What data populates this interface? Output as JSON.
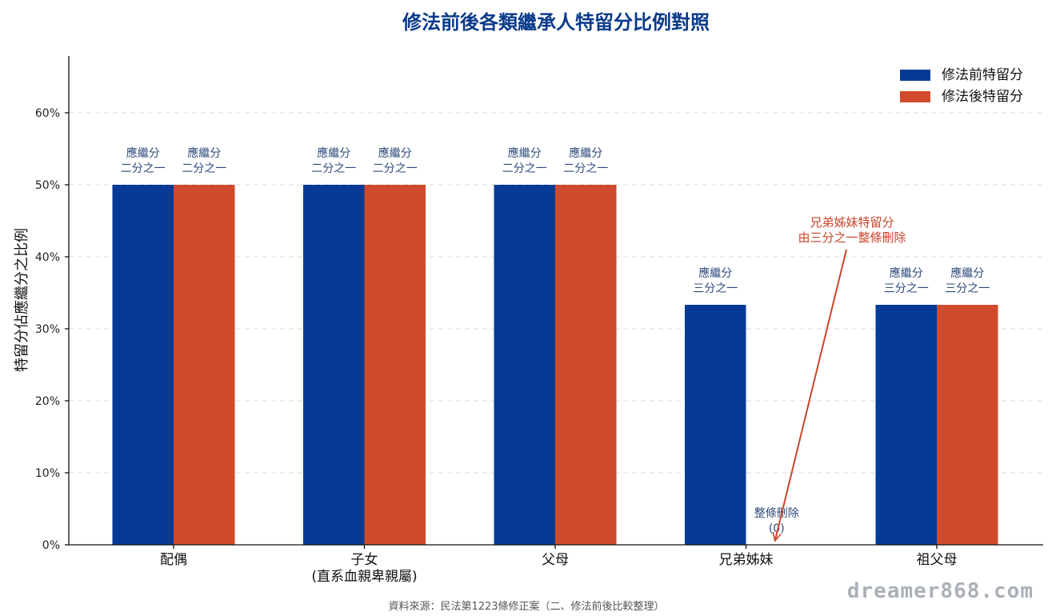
{
  "chart_data": {
    "type": "bar",
    "title": "修法前後各類繼承人特留分比例對照",
    "xlabel": "",
    "ylabel": "特留分佔應繼分之比例",
    "categories": [
      [
        "配偶"
      ],
      [
        "子女",
        "(直系血親卑親屬)"
      ],
      [
        "父母"
      ],
      [
        "兄弟姊妹"
      ],
      [
        "祖父母"
      ]
    ],
    "yticks": [
      "0%",
      "10%",
      "20%",
      "30%",
      "40%",
      "50%",
      "60%"
    ],
    "ylim": [
      0,
      0.68
    ],
    "grid": true,
    "legend_position": "top-right",
    "series": [
      {
        "name": "修法前特留分",
        "color": "#043a94",
        "values": [
          0.5,
          0.5,
          0.5,
          0.3333,
          0.3333
        ],
        "labels": [
          [
            "應繼分",
            "二分之一"
          ],
          [
            "應繼分",
            "二分之一"
          ],
          [
            "應繼分",
            "二分之一"
          ],
          [
            "應繼分",
            "三分之一"
          ],
          [
            "應繼分",
            "三分之一"
          ]
        ]
      },
      {
        "name": "修法後特留分",
        "color": "#d04a2c",
        "values": [
          0.5,
          0.5,
          0.5,
          0,
          0.3333
        ],
        "labels": [
          [
            "應繼分",
            "二分之一"
          ],
          [
            "應繼分",
            "二分之一"
          ],
          [
            "應繼分",
            "二分之一"
          ],
          [
            "整條刪除",
            "(0)"
          ],
          [
            "應繼分",
            "三分之一"
          ]
        ]
      }
    ],
    "annotations": [
      {
        "lines": [
          "兄弟姊妹特留分",
          "由三分之一整條刪除"
        ],
        "color": "#c9452a",
        "target_category": 3,
        "target_series": 1
      }
    ]
  },
  "footer": {
    "source": "資料來源：民法第1223條修正案（二、修法前後比較整理）",
    "watermark": "dreamer868.com"
  }
}
